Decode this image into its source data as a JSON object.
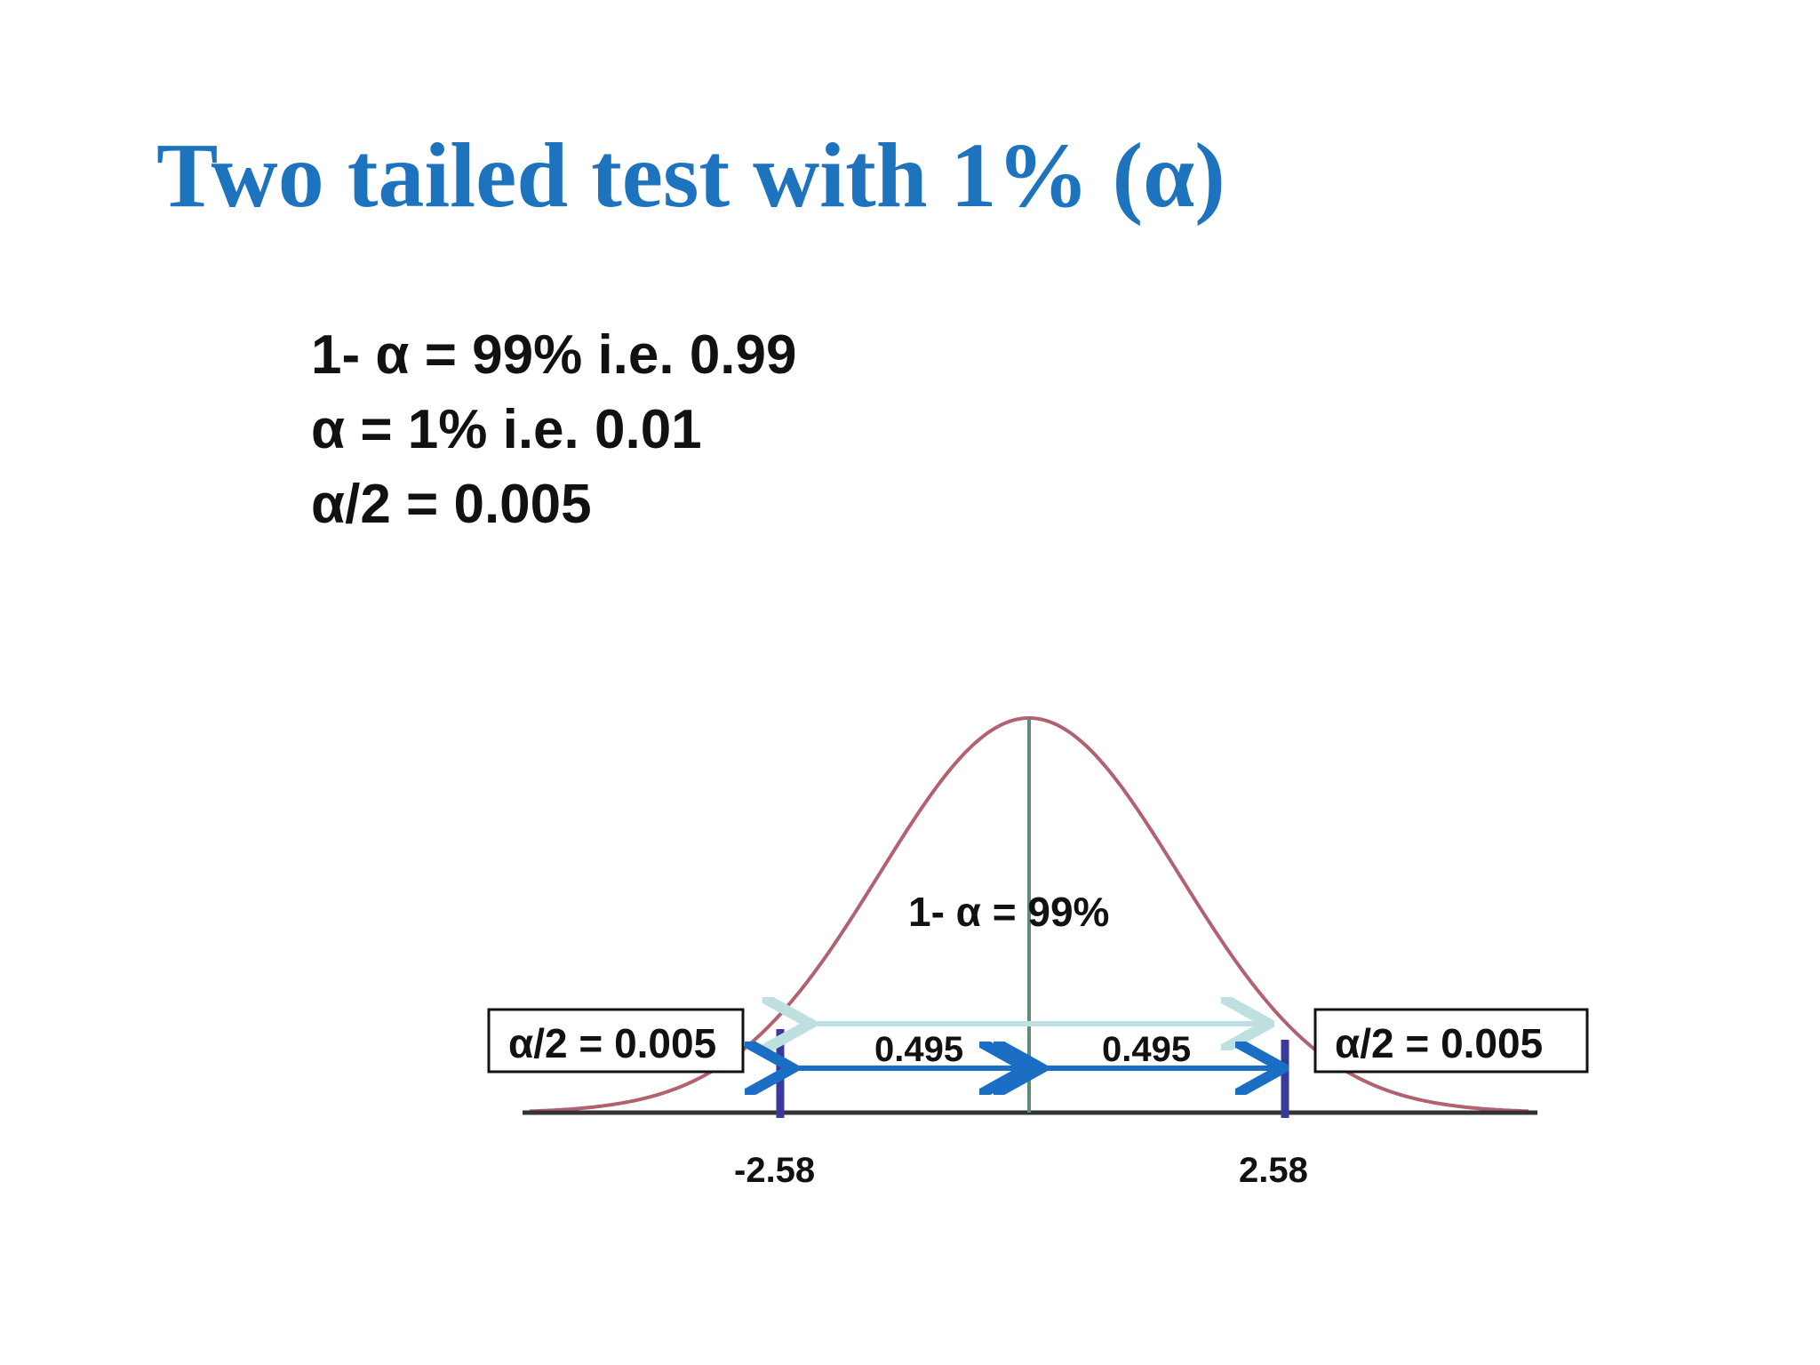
{
  "slide": {
    "title": "Two tailed test with 1% (α)",
    "formulas": [
      "1- α = 99% i.e. 0.99",
      "α = 1% i.e. 0.01",
      "α/2 = 0.005"
    ]
  },
  "diagram": {
    "center_label": "1- α = 99%",
    "left_tail_box": "α/2 = 0.005",
    "right_tail_box": "α/2 = 0.005",
    "left_half_area": "0.495",
    "right_half_area": "0.495",
    "left_critical_value": "-2.58",
    "right_critical_value": "2.58",
    "colors": {
      "title": "#1e73be",
      "curve": "#a8505f",
      "critical_lines": "#3a3a9c",
      "arrows": "#1a6fc4",
      "top_arrow": "#bfe0e0",
      "center_line": "#5f8a78",
      "axis": "#333333"
    }
  }
}
